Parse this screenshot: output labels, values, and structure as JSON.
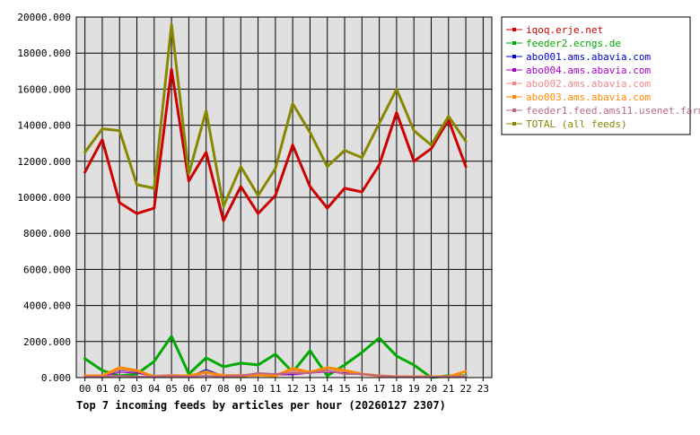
{
  "chart_data": {
    "type": "line",
    "title": "Top 7 incoming feeds by articles per hour (20260127 2307)",
    "xlabel": "",
    "ylabel": "",
    "categories": [
      "00",
      "01",
      "02",
      "03",
      "04",
      "05",
      "06",
      "07",
      "08",
      "09",
      "10",
      "11",
      "12",
      "13",
      "14",
      "15",
      "16",
      "17",
      "18",
      "19",
      "20",
      "21",
      "22",
      "23"
    ],
    "ylim": [
      0,
      20000
    ],
    "y_ticks": [
      "0.000",
      "2000.000",
      "4000.000",
      "6000.000",
      "8000.000",
      "10000.000",
      "12000.000",
      "14000.000",
      "16000.000",
      "18000.000",
      "20000.000"
    ],
    "y_tick_values": [
      0,
      2000,
      4000,
      6000,
      8000,
      10000,
      12000,
      14000,
      16000,
      18000,
      20000
    ],
    "grid": true,
    "legend_position": "right",
    "plot_background": "#e0e0e0",
    "series": [
      {
        "name": "iqoq.erje.net",
        "color": "#cc0000",
        "width": 3,
        "values": [
          11400,
          13200,
          9700,
          9100,
          9400,
          17100,
          10900,
          12500,
          8700,
          10600,
          9100,
          10100,
          12900,
          10600,
          9400,
          10500,
          10300,
          11800,
          14700,
          12000,
          12700,
          14300,
          11700,
          null
        ]
      },
      {
        "name": "feeder2.ecngs.de",
        "color": "#00aa00",
        "width": 3,
        "values": [
          1050,
          400,
          100,
          200,
          900,
          2300,
          200,
          1100,
          600,
          800,
          700,
          1300,
          300,
          1500,
          100,
          700,
          1400,
          2200,
          1200,
          700,
          0,
          100,
          100,
          null
        ]
      },
      {
        "name": "abo001.ams.abavia.com",
        "color": "#0000cc",
        "width": 1,
        "values": [
          50,
          50,
          400,
          300,
          50,
          100,
          50,
          450,
          100,
          50,
          100,
          150,
          200,
          300,
          400,
          300,
          200,
          100,
          50,
          50,
          50,
          50,
          50,
          null
        ]
      },
      {
        "name": "abo004.ams.abavia.com",
        "color": "#aa00cc",
        "width": 1,
        "values": [
          50,
          50,
          300,
          250,
          50,
          100,
          50,
          300,
          100,
          50,
          100,
          150,
          150,
          250,
          300,
          250,
          150,
          100,
          50,
          50,
          50,
          50,
          50,
          null
        ]
      },
      {
        "name": "abo002.ams.abavia.com",
        "color": "#ee8888",
        "width": 2,
        "values": [
          50,
          100,
          450,
          350,
          100,
          150,
          100,
          300,
          150,
          150,
          200,
          150,
          350,
          300,
          350,
          350,
          200,
          100,
          50,
          50,
          50,
          50,
          100,
          null
        ]
      },
      {
        "name": "abo003.ams.abavia.com",
        "color": "#ff8800",
        "width": 3,
        "values": [
          100,
          100,
          550,
          400,
          50,
          100,
          100,
          300,
          100,
          100,
          150,
          100,
          500,
          300,
          550,
          400,
          200,
          100,
          50,
          50,
          50,
          50,
          350,
          null
        ]
      },
      {
        "name": "feeder1.feed.ams11.usenet.farm",
        "color": "#bb6688",
        "width": 2,
        "values": [
          50,
          50,
          100,
          50,
          50,
          100,
          50,
          100,
          50,
          100,
          250,
          200,
          250,
          250,
          400,
          200,
          200,
          100,
          50,
          50,
          50,
          50,
          50,
          null
        ]
      },
      {
        "name": "TOTAL (all feeds)",
        "color": "#888800",
        "width": 3,
        "values": [
          12500,
          13800,
          13700,
          10700,
          10500,
          19600,
          11300,
          14800,
          9500,
          11700,
          10100,
          11600,
          15200,
          13600,
          11700,
          12600,
          12200,
          14100,
          16000,
          13700,
          12900,
          14500,
          13100,
          null
        ]
      }
    ]
  }
}
